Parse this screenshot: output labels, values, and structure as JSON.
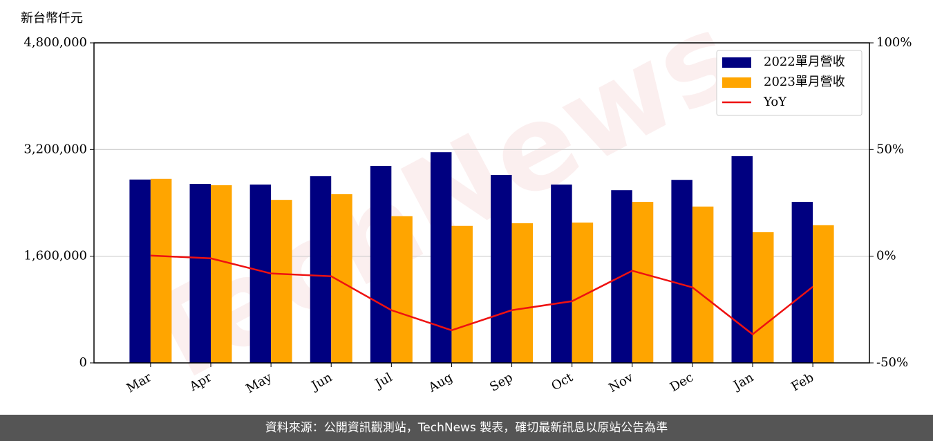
{
  "chart_data": {
    "type": "bar",
    "y_label": "新台幣仟元",
    "watermark": "TechNews",
    "categories": [
      "Mar",
      "Apr",
      "May",
      "Jun",
      "Jul",
      "Aug",
      "Sep",
      "Oct",
      "Nov",
      "Dec",
      "Jan",
      "Feb"
    ],
    "series": [
      {
        "name": "2022單月營收",
        "color": "#000080",
        "type": "bar",
        "values": [
          2750000,
          2685000,
          2675000,
          2800000,
          2955000,
          3160000,
          2820000,
          2675000,
          2590000,
          2745000,
          3100000,
          2415000
        ]
      },
      {
        "name": "2023單月營收",
        "color": "#ffa500",
        "type": "bar",
        "values": [
          2760000,
          2665000,
          2445000,
          2530000,
          2200000,
          2055000,
          2095000,
          2105000,
          2415000,
          2345000,
          1960000,
          2065000
        ]
      },
      {
        "name": "YoY",
        "color": "#ee1111",
        "type": "line",
        "axis": "y2",
        "values": [
          0.3,
          -1.0,
          -8.1,
          -9.4,
          -25.3,
          -34.7,
          -25.3,
          -21.1,
          -6.8,
          -14.6,
          -36.6,
          -14.3
        ]
      }
    ],
    "ylim": [
      0,
      4800000
    ],
    "yticks": [
      {
        "value": 0,
        "label": "0"
      },
      {
        "value": 1600000,
        "label": "1,600,000"
      },
      {
        "value": 3200000,
        "label": "3,200,000"
      },
      {
        "value": 4800000,
        "label": "4,800,000"
      }
    ],
    "y2lim": [
      -50,
      100
    ],
    "y2ticks": [
      {
        "value": -50,
        "label": "-50%"
      },
      {
        "value": 0,
        "label": "0%"
      },
      {
        "value": 50,
        "label": "50%"
      },
      {
        "value": 100,
        "label": "100%"
      }
    ],
    "grid": true,
    "legend": "upper right",
    "source": "資料來源：公開資訊觀測站，TechNews 製表，確切最新訊息以原站公告為準"
  }
}
